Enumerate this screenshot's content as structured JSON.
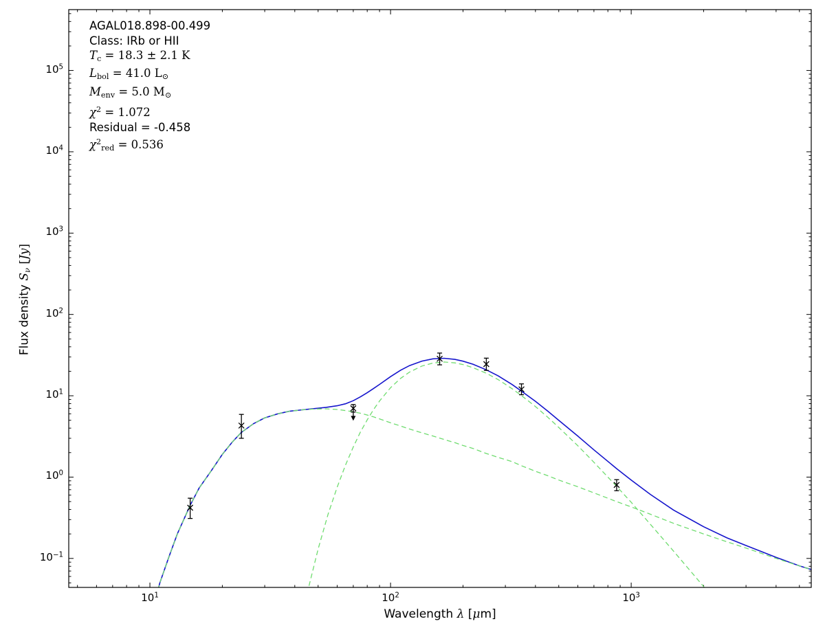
{
  "figure": {
    "background": "#ffffff",
    "annotation_lines": [
      {
        "segments": [
          {
            "t": "AGAL018.898-00.499"
          }
        ]
      },
      {
        "segments": [
          {
            "t": "Class: IRb or HII"
          }
        ]
      },
      {
        "segments": [
          {
            "t": "T",
            "i": 1,
            "m": 1
          },
          {
            "t": "c",
            "sub": 1,
            "m": 1
          },
          {
            "t": " = 18.3 ± 2.1 K",
            "m": 1
          }
        ]
      },
      {
        "segments": [
          {
            "t": "L",
            "i": 1,
            "m": 1
          },
          {
            "t": "bol",
            "sub": 1,
            "m": 1
          },
          {
            "t": " = 41.0 L",
            "m": 1
          },
          {
            "t": "⊙",
            "sub": 1,
            "m": 1
          }
        ]
      },
      {
        "segments": [
          {
            "t": "M",
            "i": 1,
            "m": 1
          },
          {
            "t": "env",
            "sub": 1,
            "m": 1
          },
          {
            "t": " = 5.0 M",
            "m": 1
          },
          {
            "t": "⊙",
            "sub": 1,
            "m": 1
          }
        ]
      },
      {
        "segments": [
          {
            "t": "χ",
            "i": 1,
            "m": 1
          },
          {
            "t": "2",
            "sup": 1,
            "m": 1
          },
          {
            "t": " = 1.072",
            "m": 1
          }
        ]
      },
      {
        "segments": [
          {
            "t": "Residual = -0.458"
          }
        ]
      },
      {
        "segments": [
          {
            "t": "χ",
            "i": 1,
            "m": 1
          },
          {
            "t": "2",
            "sup": 1,
            "m": 1
          },
          {
            "t": "red",
            "sub": 1,
            "m": 1
          },
          {
            "t": " = 0.536",
            "m": 1
          }
        ]
      }
    ],
    "xlabel_segments": [
      {
        "t": "Wavelength "
      },
      {
        "t": "λ",
        "i": 1,
        "m": 1
      },
      {
        "t": " ["
      },
      {
        "t": "μ",
        "i": 1,
        "m": 1
      },
      {
        "t": "m]"
      }
    ],
    "ylabel_segments": [
      {
        "t": "Flux density "
      },
      {
        "t": "S",
        "i": 1,
        "m": 1
      },
      {
        "t": "ν",
        "i": 1,
        "sub": 1,
        "m": 1
      },
      {
        "t": " [",
        "m": 1
      },
      {
        "t": "Jy",
        "i": 1,
        "m": 1
      },
      {
        "t": "]",
        "m": 1
      }
    ]
  },
  "chart_data": {
    "type": "line",
    "title": "AGAL018.898-00.499",
    "xlabel": "Wavelength λ [μm]",
    "ylabel": "Flux density S_ν [Jy]",
    "xscale": "log",
    "yscale": "log",
    "xlim": [
      4.6,
      5600
    ],
    "ylim": [
      0.044,
      560000
    ],
    "x_tick_exponents": [
      1,
      2,
      3
    ],
    "y_tick_exponents": [
      -1,
      0,
      1,
      2,
      3,
      4,
      5
    ],
    "grid": false,
    "legend": null,
    "fit_parameters": {
      "source": "AGAL018.898-00.499",
      "class": "IRb or HII",
      "T_c_K": 18.3,
      "T_c_err_K": 2.1,
      "L_bol_Lsun": 41.0,
      "M_env_Msun": 5.0,
      "chi2": 1.072,
      "residual": -0.458,
      "chi2_red": 0.536
    },
    "series": [
      {
        "name": "model-total",
        "style": "solid",
        "color": "#1414cc",
        "width": 1.6,
        "points": [
          [
            10.6,
            0.033
          ],
          [
            11,
            0.05
          ],
          [
            12,
            0.105
          ],
          [
            13,
            0.2
          ],
          [
            14.7,
            0.45
          ],
          [
            16,
            0.73
          ],
          [
            18,
            1.2
          ],
          [
            20,
            1.9
          ],
          [
            22,
            2.7
          ],
          [
            24,
            3.55
          ],
          [
            27,
            4.55
          ],
          [
            30,
            5.35
          ],
          [
            34,
            6.0
          ],
          [
            38,
            6.45
          ],
          [
            43,
            6.72
          ],
          [
            48,
            6.94
          ],
          [
            54,
            7.2
          ],
          [
            60,
            7.53
          ],
          [
            65,
            7.98
          ],
          [
            70,
            8.7
          ],
          [
            75,
            9.7
          ],
          [
            80,
            10.9
          ],
          [
            85,
            12.3
          ],
          [
            90,
            13.8
          ],
          [
            100,
            17.2
          ],
          [
            110,
            20.6
          ],
          [
            120,
            23.5
          ],
          [
            135,
            26.7
          ],
          [
            150,
            28.45
          ],
          [
            167,
            28.9
          ],
          [
            185,
            28.0
          ],
          [
            200,
            26.65
          ],
          [
            220,
            24.45
          ],
          [
            250,
            20.85
          ],
          [
            280,
            17.55
          ],
          [
            320,
            13.75
          ],
          [
            350,
            11.4
          ],
          [
            400,
            8.55
          ],
          [
            450,
            6.48
          ],
          [
            500,
            5.0
          ],
          [
            600,
            3.19
          ],
          [
            700,
            2.16
          ],
          [
            870,
            1.27
          ],
          [
            1000,
            0.92
          ],
          [
            1200,
            0.614
          ],
          [
            1500,
            0.393
          ],
          [
            2000,
            0.245
          ],
          [
            2500,
            0.179
          ],
          [
            3000,
            0.144
          ],
          [
            4000,
            0.103
          ],
          [
            5000,
            0.081
          ],
          [
            5600,
            0.073
          ]
        ]
      },
      {
        "name": "warm-component",
        "style": "dashed",
        "color": "#6fdc6f",
        "width": 1.3,
        "points": [
          [
            10.6,
            0.033
          ],
          [
            11,
            0.05
          ],
          [
            12,
            0.105
          ],
          [
            13,
            0.2
          ],
          [
            14.7,
            0.45
          ],
          [
            16,
            0.73
          ],
          [
            18,
            1.2
          ],
          [
            20,
            1.9
          ],
          [
            22,
            2.7
          ],
          [
            24,
            3.55
          ],
          [
            27,
            4.55
          ],
          [
            30,
            5.35
          ],
          [
            34,
            6.0
          ],
          [
            38,
            6.45
          ],
          [
            43,
            6.72
          ],
          [
            48,
            6.86
          ],
          [
            54,
            6.9
          ],
          [
            60,
            6.78
          ],
          [
            65,
            6.57
          ],
          [
            70,
            6.35
          ],
          [
            75,
            6.1
          ],
          [
            80,
            5.8
          ],
          [
            85,
            5.5
          ],
          [
            90,
            5.2
          ],
          [
            100,
            4.65
          ],
          [
            110,
            4.25
          ],
          [
            120,
            3.9
          ],
          [
            135,
            3.5
          ],
          [
            150,
            3.2
          ],
          [
            167,
            2.9
          ],
          [
            185,
            2.65
          ],
          [
            200,
            2.45
          ],
          [
            220,
            2.25
          ],
          [
            250,
            1.95
          ],
          [
            280,
            1.75
          ],
          [
            320,
            1.55
          ],
          [
            350,
            1.38
          ],
          [
            400,
            1.18
          ],
          [
            450,
            1.04
          ],
          [
            500,
            0.92
          ],
          [
            600,
            0.76
          ],
          [
            700,
            0.64
          ],
          [
            870,
            0.5
          ],
          [
            1000,
            0.43
          ],
          [
            1200,
            0.35
          ],
          [
            1500,
            0.27
          ],
          [
            2000,
            0.2
          ],
          [
            2500,
            0.16
          ],
          [
            3000,
            0.134
          ],
          [
            4000,
            0.1
          ],
          [
            5000,
            0.081
          ],
          [
            5600,
            0.073
          ]
        ]
      },
      {
        "name": "cold-component",
        "style": "dashed",
        "color": "#6fdc6f",
        "width": 1.3,
        "points": [
          [
            45,
            0.037
          ],
          [
            50,
            0.13
          ],
          [
            55,
            0.35
          ],
          [
            60,
            0.75
          ],
          [
            65,
            1.41
          ],
          [
            70,
            2.35
          ],
          [
            75,
            3.59
          ],
          [
            80,
            5.07
          ],
          [
            85,
            6.77
          ],
          [
            90,
            8.64
          ],
          [
            100,
            12.57
          ],
          [
            110,
            16.35
          ],
          [
            120,
            19.6
          ],
          [
            135,
            23.2
          ],
          [
            150,
            25.25
          ],
          [
            167,
            26.0
          ],
          [
            185,
            25.35
          ],
          [
            200,
            24.2
          ],
          [
            220,
            22.2
          ],
          [
            250,
            18.9
          ],
          [
            280,
            15.8
          ],
          [
            320,
            12.2
          ],
          [
            350,
            10.05
          ],
          [
            400,
            7.37
          ],
          [
            450,
            5.44
          ],
          [
            500,
            4.08
          ],
          [
            600,
            2.43
          ],
          [
            700,
            1.52
          ],
          [
            870,
            0.77
          ],
          [
            1000,
            0.49
          ],
          [
            1200,
            0.264
          ],
          [
            1500,
            0.123
          ],
          [
            2000,
            0.045
          ],
          [
            2200,
            0.032
          ]
        ]
      }
    ],
    "data_points": [
      {
        "wavelength_um": 14.7,
        "flux_jy": 0.42,
        "flux_lo": 0.31,
        "flux_hi": 0.55,
        "upper_limit": false
      },
      {
        "wavelength_um": 24,
        "flux_jy": 4.3,
        "flux_lo": 3.0,
        "flux_hi": 5.9,
        "upper_limit": false
      },
      {
        "wavelength_um": 70,
        "flux_jy": 7.0,
        "flux_lo": 6.3,
        "flux_hi": 7.8,
        "upper_limit": true
      },
      {
        "wavelength_um": 160,
        "flux_jy": 28.5,
        "flux_lo": 24.0,
        "flux_hi": 33.5,
        "upper_limit": false
      },
      {
        "wavelength_um": 250,
        "flux_jy": 24.5,
        "flux_lo": 20.5,
        "flux_hi": 29.0,
        "upper_limit": false
      },
      {
        "wavelength_um": 350,
        "flux_jy": 12.0,
        "flux_lo": 10.3,
        "flux_hi": 14.0,
        "upper_limit": false
      },
      {
        "wavelength_um": 870,
        "flux_jy": 0.8,
        "flux_lo": 0.68,
        "flux_hi": 0.93,
        "upper_limit": false
      }
    ],
    "marker": "x",
    "marker_color": "#000000"
  }
}
